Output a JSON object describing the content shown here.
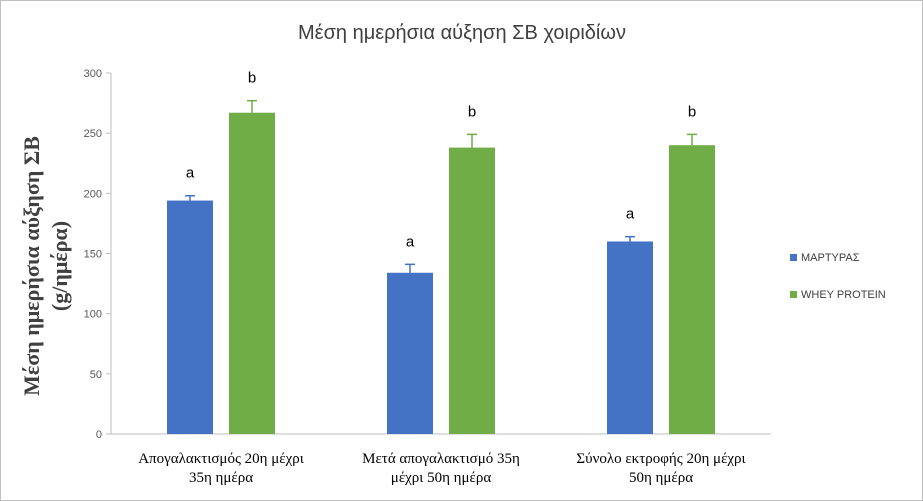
{
  "chart_data": {
    "type": "bar",
    "title": "Μέση ημερήσια αύξηση ΣΒ χοιριδίων",
    "ylabel_line1": "Μέση ημερήσια αύξηση  ΣΒ",
    "ylabel_line2": "(g/ημέρα)",
    "xlabel": "",
    "ylim": [
      0,
      300
    ],
    "yticks": [
      0,
      50,
      100,
      150,
      200,
      250,
      300
    ],
    "categories": [
      [
        "Απογαλακτισμός 20η μέχρι",
        "35η ημέρα"
      ],
      [
        "Μετά απογαλακτισμό 35η",
        "μέχρι 50η ημέρα"
      ],
      [
        "Σύνολο εκτροφής 20η μέχρι",
        "50η ημέρα"
      ]
    ],
    "series": [
      {
        "name": "ΜΑΡΤΥΡΑΣ",
        "color": "#4472c4",
        "values": [
          194,
          134,
          160
        ],
        "errors": [
          4,
          7,
          4
        ],
        "labels": [
          "a",
          "a",
          "a"
        ]
      },
      {
        "name": "WHEY PROTEIN",
        "color": "#70ad47",
        "values": [
          267,
          238,
          240
        ],
        "errors": [
          10,
          11,
          9
        ],
        "labels": [
          "b",
          "b",
          "b"
        ]
      }
    ],
    "grid": false,
    "legend_position": "right"
  }
}
